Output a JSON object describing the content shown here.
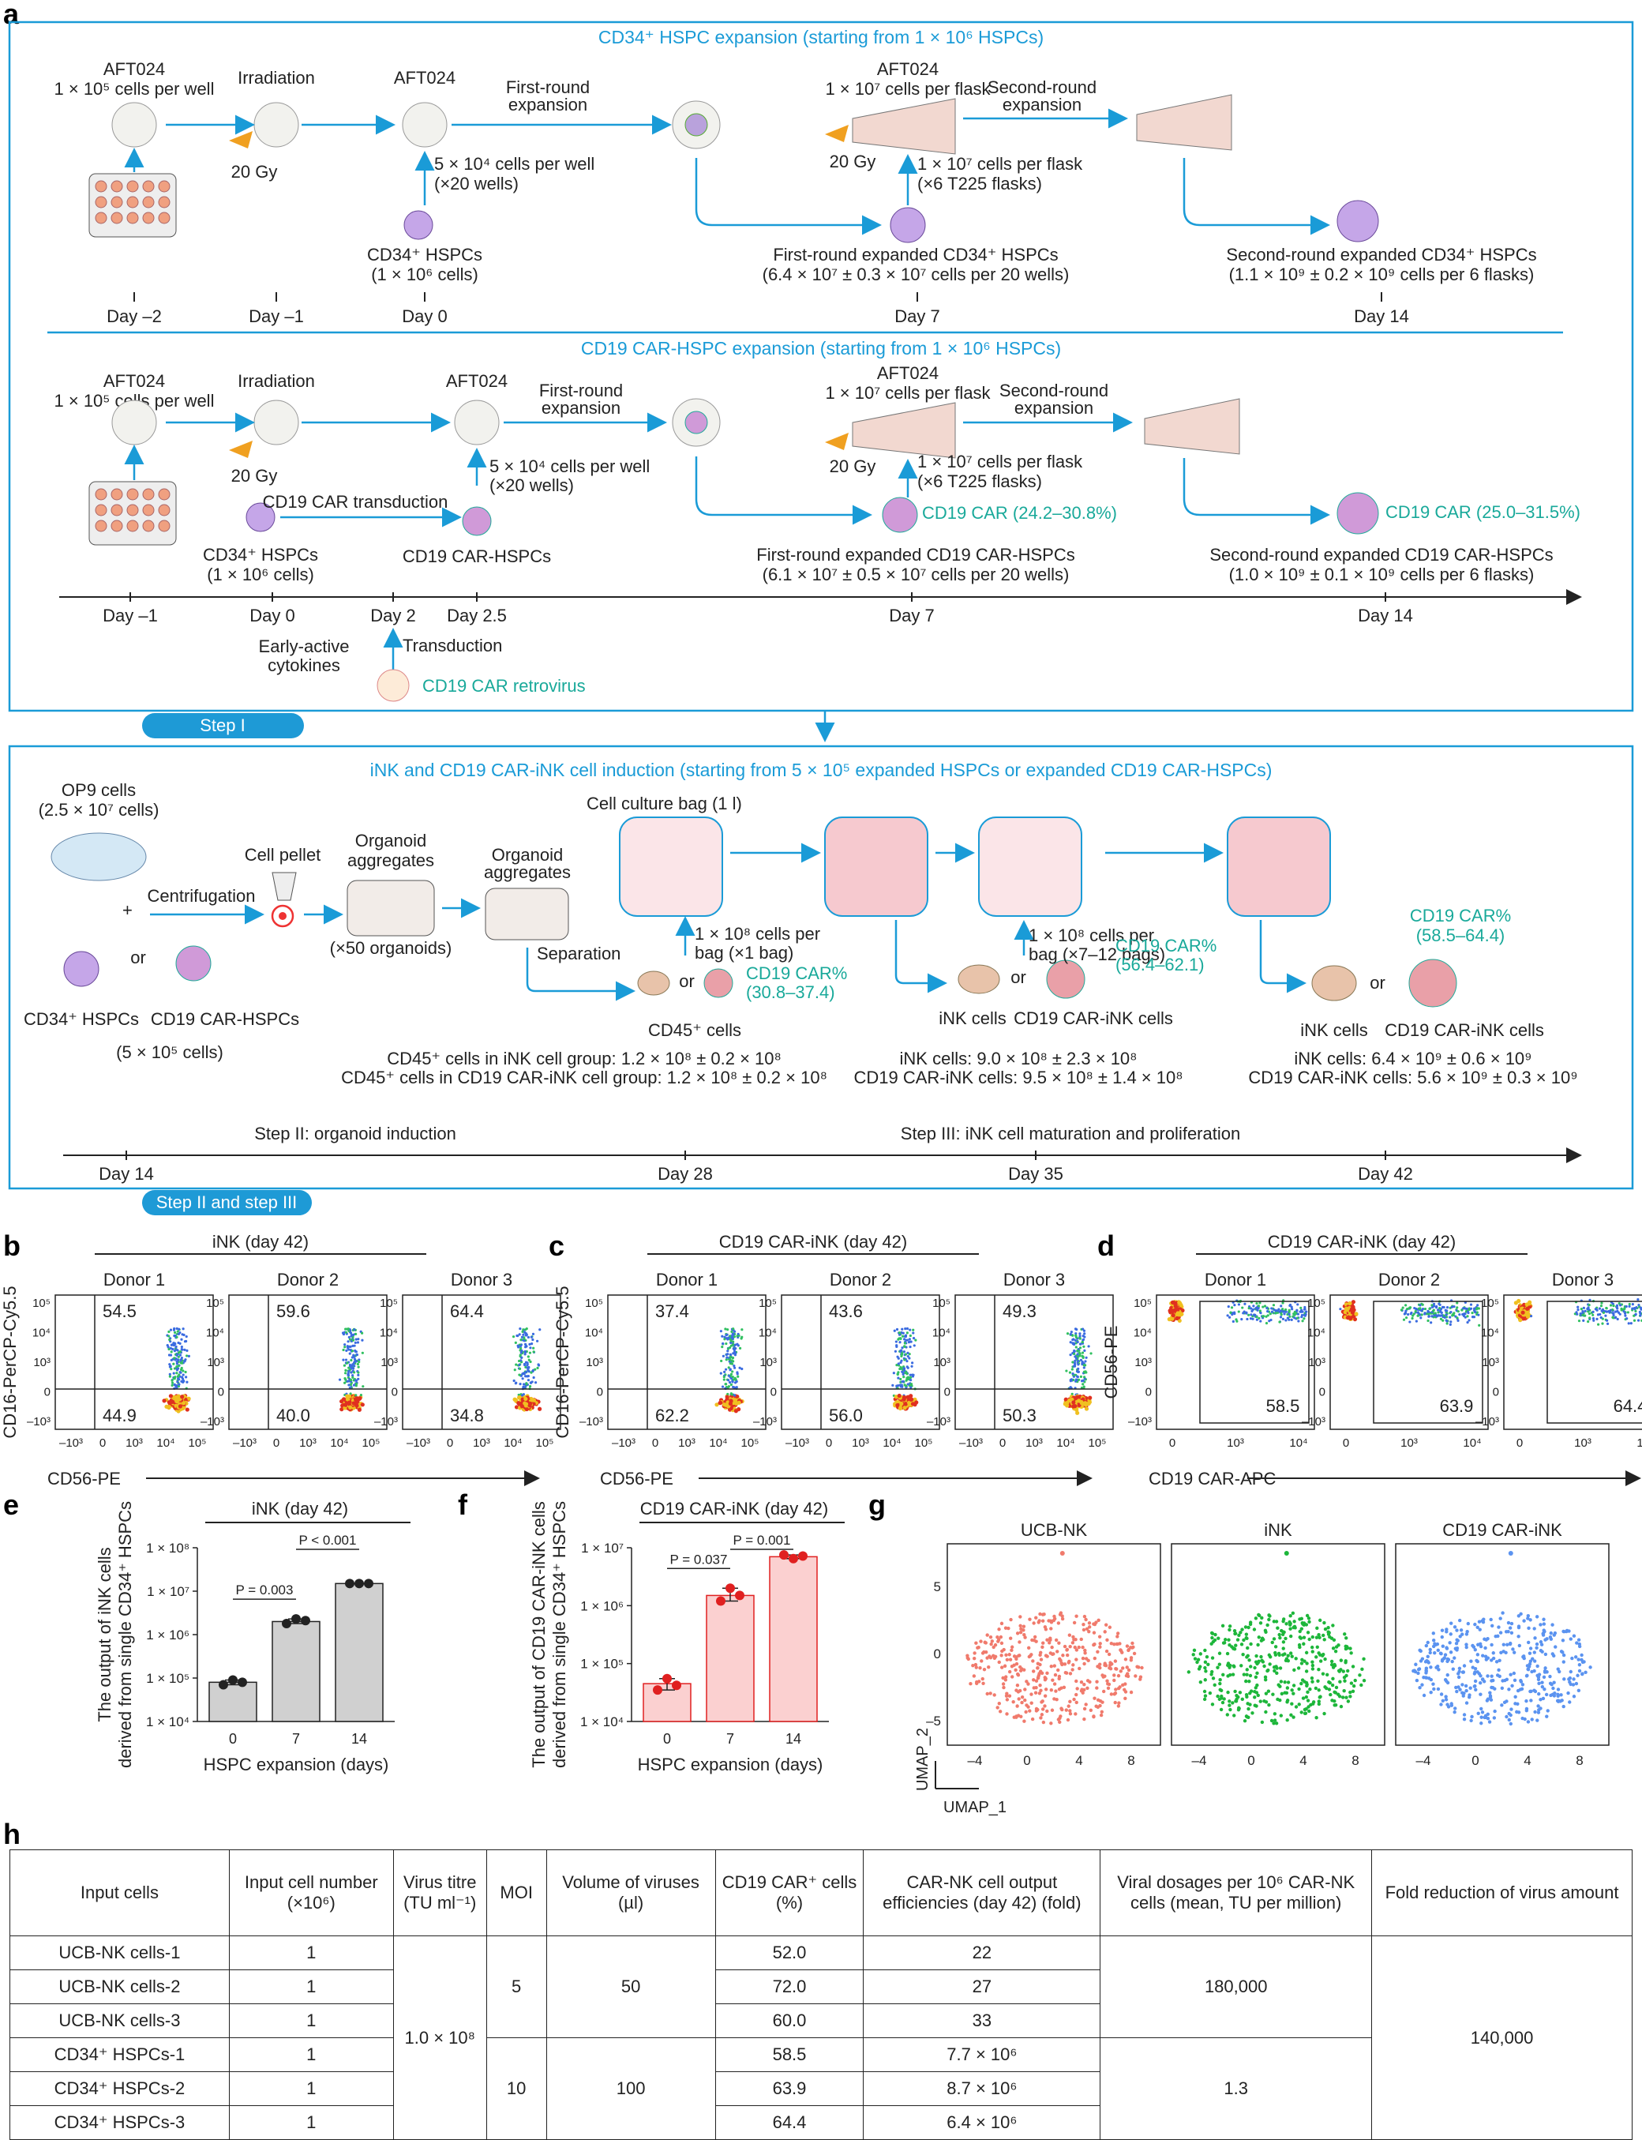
{
  "panel_letters": [
    "a",
    "b",
    "c",
    "d",
    "e",
    "f",
    "g",
    "h"
  ],
  "panel_a": {
    "box1_title": "CD34⁺ HSPC expansion (starting from 1 × 10⁶ HSPCs)",
    "box1": {
      "aft_top": "AFT024",
      "aft_density": "1 × 10⁵ cells per well",
      "irradiation": "Irradiation",
      "gy": "20 Gy",
      "aft_day0": "AFT024",
      "first_round": "First-round",
      "expansion": "expansion",
      "aft_flask": "AFT024",
      "flask_density": "1 × 10⁷ cells per flask",
      "second_round": "Second-round",
      "expansion2": "expansion",
      "seed_cells": "5 × 10⁴ cells per well",
      "seed_wells": "(×20 wells)",
      "hspc": "CD34⁺ HSPCs",
      "hspc_n": "(1 × 10⁶ cells)",
      "flask_cells": "1 × 10⁷ cells per flask",
      "flask_n": "(×6 T225 flasks)",
      "gy2": "20 Gy",
      "first_out": "First-round expanded CD34⁺ HSPCs",
      "first_out_n": "(6.4 × 10⁷ ± 0.3 × 10⁷ cells per 20 wells)",
      "second_out": "Second-round expanded CD34⁺ HSPCs",
      "second_out_n": "(1.1 × 10⁹ ± 0.2 × 10⁹ cells per 6 flasks)",
      "days": [
        "Day –2",
        "Day –1",
        "Day 0",
        "Day 7",
        "Day 14"
      ]
    },
    "box2_title": "CD19 CAR-HSPC expansion (starting from 1 × 10⁶ HSPCs)",
    "box2": {
      "transduction": "CD19 CAR transduction",
      "hspc": "CD34⁺ HSPCs",
      "hspc_n": "(1 × 10⁶ cells)",
      "car_hspc": "CD19 CAR-HSPCs",
      "car1": "CD19 CAR (24.2–30.8%)",
      "car2": "CD19 CAR (25.0–31.5%)",
      "first_out": "First-round expanded CD19 CAR-HSPCs",
      "first_out_n": "(6.1 × 10⁷ ± 0.5 × 10⁷ cells per 20 wells)",
      "second_out": "Second-round expanded CD19 CAR-HSPCs",
      "second_out_n": "(1.0 × 10⁹ ± 0.1 × 10⁹ cells per 6 flasks)",
      "days": [
        "Day –1",
        "Day 0",
        "Day 2",
        "Day 2.5",
        "Day 7",
        "Day 14"
      ],
      "early": "Early-active",
      "cytokines": "cytokines",
      "transduction2": "Transduction",
      "retrovirus": "CD19 CAR retrovirus"
    },
    "step1": "Step I",
    "box3_title": "iNK and CD19 CAR-iNK cell induction (starting from 5 × 10⁵ expanded HSPCs or expanded CD19 CAR-HSPCs)",
    "box3": {
      "op9": "OP9 cells",
      "op9_n": "(2.5 × 10⁷ cells)",
      "plus": "+",
      "centrifugation": "Centrifugation",
      "pellet": "Cell pellet",
      "organoid1a": "Organoid",
      "organoid1b": "aggregates",
      "organoid_n": "(×50 organoids)",
      "organoid2a": "Organoid",
      "organoid2b": "aggregates",
      "bag": "Cell culture bag (1 l)",
      "or": "or",
      "hspc": "CD34⁺ HSPCs",
      "car_hspc": "CD19 CAR-HSPCs",
      "cells_n": "(5 × 10⁵ cells)",
      "separation": "Separation",
      "bag1a": "1 × 10⁸ cells per",
      "bag1b": "bag (×1 bag)",
      "bag2a": "1 × 10⁸ cells per",
      "bag2b": "bag (×7–12 bags)",
      "car_pct1a": "CD19 CAR%",
      "car_pct1b": "(30.8–37.4)",
      "car_pct2a": "CD19 CAR%",
      "car_pct2b": "(56.4–62.1)",
      "car_pct3a": "CD19 CAR%",
      "car_pct3b": "(58.5–64.4)",
      "cd45": "CD45⁺ cells",
      "ink": "iNK cells",
      "car_ink": "CD19 CAR-iNK cells",
      "res1a": "CD45⁺ cells in iNK cell group: 1.2 × 10⁸ ± 0.2 × 10⁸",
      "res1b": "CD45⁺ cells in CD19 CAR-iNK cell group: 1.2 × 10⁸ ± 0.2 × 10⁸",
      "res2a": "iNK cells: 9.0 × 10⁸ ± 2.3 × 10⁸",
      "res2b": "CD19 CAR-iNK cells: 9.5 × 10⁸ ± 1.4 × 10⁸",
      "res3a": "iNK cells: 6.4 × 10⁹ ± 0.6 × 10⁹",
      "res3b": "CD19 CAR-iNK cells: 5.6 × 10⁹ ± 0.3 × 10⁹",
      "step2": "Step II: organoid induction",
      "step3": "Step III: iNK cell maturation and proliferation",
      "days": [
        "Day 14",
        "Day 28",
        "Day 35",
        "Day 42"
      ]
    },
    "step23": "Step II and step III"
  },
  "panel_b": {
    "title": "iNK (day 42)",
    "ylabel": "CD16-PerCP-Cy5.5",
    "xlabel": "CD56-PE",
    "donors": [
      "Donor 1",
      "Donor 2",
      "Donor 3"
    ],
    "upper": [
      "54.5",
      "59.6",
      "64.4"
    ],
    "lower": [
      "44.9",
      "40.0",
      "34.8"
    ]
  },
  "panel_c": {
    "title": "CD19 CAR-iNK (day 42)",
    "ylabel": "CD16-PerCP-Cy5.5",
    "xlabel": "CD56-PE",
    "donors": [
      "Donor 1",
      "Donor 2",
      "Donor 3"
    ],
    "upper": [
      "37.4",
      "43.6",
      "49.3"
    ],
    "lower": [
      "62.2",
      "56.0",
      "50.3"
    ]
  },
  "panel_d": {
    "title": "CD19 CAR-iNK (day 42)",
    "ylabel": "CD56-PE",
    "xlabel": "CD19 CAR-APC",
    "donors": [
      "Donor 1",
      "Donor 2",
      "Donor 3"
    ],
    "gate": [
      "58.5",
      "63.9",
      "64.4"
    ]
  },
  "flow_ticks": {
    "y": [
      "10⁵",
      "10⁴",
      "10³",
      "0",
      "–10³"
    ],
    "x": [
      "–10³",
      "0",
      "10³",
      "10⁴",
      "10⁵"
    ],
    "x_d": [
      "0",
      "10³",
      "10⁴"
    ]
  },
  "panel_e": {
    "title": "iNK (day 42)",
    "ylabel1": "The output of iNK cells",
    "ylabel2": "derived from single CD34⁺ HSPCs",
    "xlabel": "HSPC expansion (days)",
    "yticks": [
      "1 × 10⁸",
      "1 × 10⁷",
      "1 × 10⁶",
      "1 × 10⁵",
      "1 × 10⁴"
    ],
    "p1": "P = 0.003",
    "p2": "P < 0.001"
  },
  "panel_f": {
    "title": "CD19 CAR-iNK (day 42)",
    "ylabel1": "The output of CD19 CAR-iNK cells",
    "ylabel2": "derived from single CD34⁺ HSPCs",
    "xlabel": "HSPC expansion (days)",
    "yticks": [
      "1 × 10⁷",
      "1 × 10⁶",
      "1 × 10⁵",
      "1 × 10⁴"
    ],
    "p1": "P = 0.037",
    "p2": "P = 0.001"
  },
  "panel_g": {
    "titles": [
      "UCB-NK",
      "iNK",
      "CD19 CAR-iNK"
    ],
    "xlabel": "UMAP_1",
    "ylabel": "UMAP_2",
    "xticks": [
      "–4",
      "0",
      "4",
      "8"
    ],
    "yticks": [
      "5",
      "0",
      "–5"
    ]
  },
  "chart_data": [
    {
      "type": "bar",
      "title": "iNK (day 42)",
      "xlabel": "HSPC expansion (days)",
      "ylabel": "The output of iNK cells derived from single CD34⁺ HSPCs",
      "yscale": "log",
      "ylim": [
        10000,
        100000000
      ],
      "categories": [
        "0",
        "7",
        "14"
      ],
      "values": [
        80000,
        2000000,
        15000000
      ],
      "points": [
        [
          70000,
          90000,
          80000
        ],
        [
          1800000,
          2300000,
          2100000
        ],
        [
          15000000,
          15000000,
          15000000
        ]
      ],
      "color": "#d0d0d0",
      "annotations": [
        "P = 0.003",
        "P < 0.001"
      ]
    },
    {
      "type": "bar",
      "title": "CD19 CAR-iNK (day 42)",
      "xlabel": "HSPC expansion (days)",
      "ylabel": "The output of CD19 CAR-iNK cells derived from single CD34⁺ HSPCs",
      "yscale": "log",
      "ylim": [
        10000,
        10000000
      ],
      "categories": [
        "0",
        "7",
        "14"
      ],
      "values": [
        45000,
        1500000,
        7000000
      ],
      "points": [
        [
          35000,
          55000,
          42000
        ],
        [
          1200000,
          2000000,
          1500000
        ],
        [
          7500000,
          6500000,
          7200000
        ]
      ],
      "color": "#fbd0d0",
      "annotations": [
        "P = 0.037",
        "P = 0.001"
      ]
    }
  ],
  "table_h": {
    "headers": [
      "Input cells",
      "Input cell number (×10⁶)",
      "Virus titre (TU ml⁻¹)",
      "MOI",
      "Volume of viruses (µl)",
      "CD19 CAR⁺ cells (%)",
      "CAR-NK cell output efficiencies (day 42) (fold)",
      "Viral dosages per 10⁶ CAR-NK cells (mean, TU per million)",
      "Fold reduction of virus amount"
    ],
    "rows": [
      [
        "UCB-NK cells-1",
        "1",
        "52.0",
        "22"
      ],
      [
        "UCB-NK cells-2",
        "1",
        "72.0",
        "27"
      ],
      [
        "UCB-NK cells-3",
        "1",
        "60.0",
        "33"
      ],
      [
        "CD34⁺ HSPCs-1",
        "1",
        "58.5",
        "7.7 × 10⁶"
      ],
      [
        "CD34⁺ HSPCs-2",
        "1",
        "63.9",
        "8.7 × 10⁶"
      ],
      [
        "CD34⁺ HSPCs-3",
        "1",
        "64.4",
        "6.4 × 10⁶"
      ]
    ],
    "titre": "1.0 × 10⁸",
    "moi": [
      "5",
      "10"
    ],
    "volume": [
      "50",
      "100"
    ],
    "dosage": [
      "180,000",
      "1.3"
    ],
    "fold": "140,000"
  },
  "colors": {
    "accent": "#1a9bd7",
    "car": "#19a99a",
    "step": "#1e9ad6",
    "red": "#e02020"
  }
}
